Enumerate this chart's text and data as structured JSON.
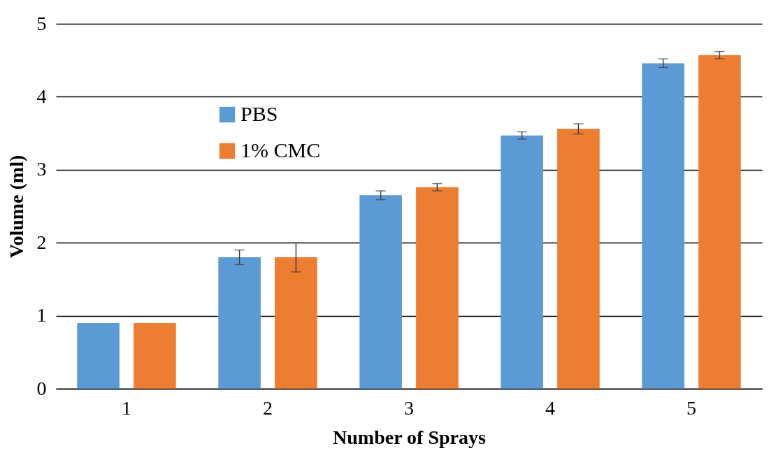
{
  "chart_data": {
    "type": "bar",
    "xlabel": "Number of Sprays",
    "ylabel": "Volume (ml)",
    "categories": [
      "1",
      "2",
      "3",
      "4",
      "5"
    ],
    "series": [
      {
        "name": "PBS",
        "color": "#5b9bd5",
        "values": [
          0.9,
          1.8,
          2.65,
          3.47,
          4.46
        ],
        "errors": [
          null,
          0.1,
          0.06,
          0.05,
          0.06
        ]
      },
      {
        "name": "1% CMC",
        "color": "#ed7d31",
        "values": [
          0.9,
          1.8,
          2.76,
          3.56,
          4.57
        ],
        "errors": [
          null,
          0.2,
          0.05,
          0.07,
          0.05
        ]
      }
    ],
    "ylim": [
      0,
      5
    ],
    "yticks": [
      0,
      1,
      2,
      3,
      4,
      5
    ],
    "grid": "y",
    "legend": "top left"
  }
}
